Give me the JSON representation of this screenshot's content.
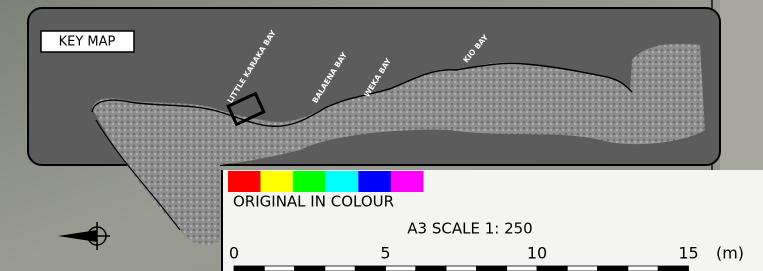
{
  "key_map": {
    "title": "KEY MAP",
    "bays": [
      "LITTLE KARAKA BAY",
      "BALAENA BAY",
      "WEKA BAY",
      "KIO BAY"
    ]
  },
  "legend": {
    "swatch_colors": [
      "#ff0000",
      "#ffff00",
      "#00ff00",
      "#00ffff",
      "#0000ff",
      "#ff00ff"
    ],
    "note": "ORIGINAL IN COLOUR"
  },
  "scale": {
    "title": "A3  SCALE  1: 250",
    "labels": [
      "0",
      "5",
      "10",
      "15"
    ],
    "unit": "(m)"
  }
}
